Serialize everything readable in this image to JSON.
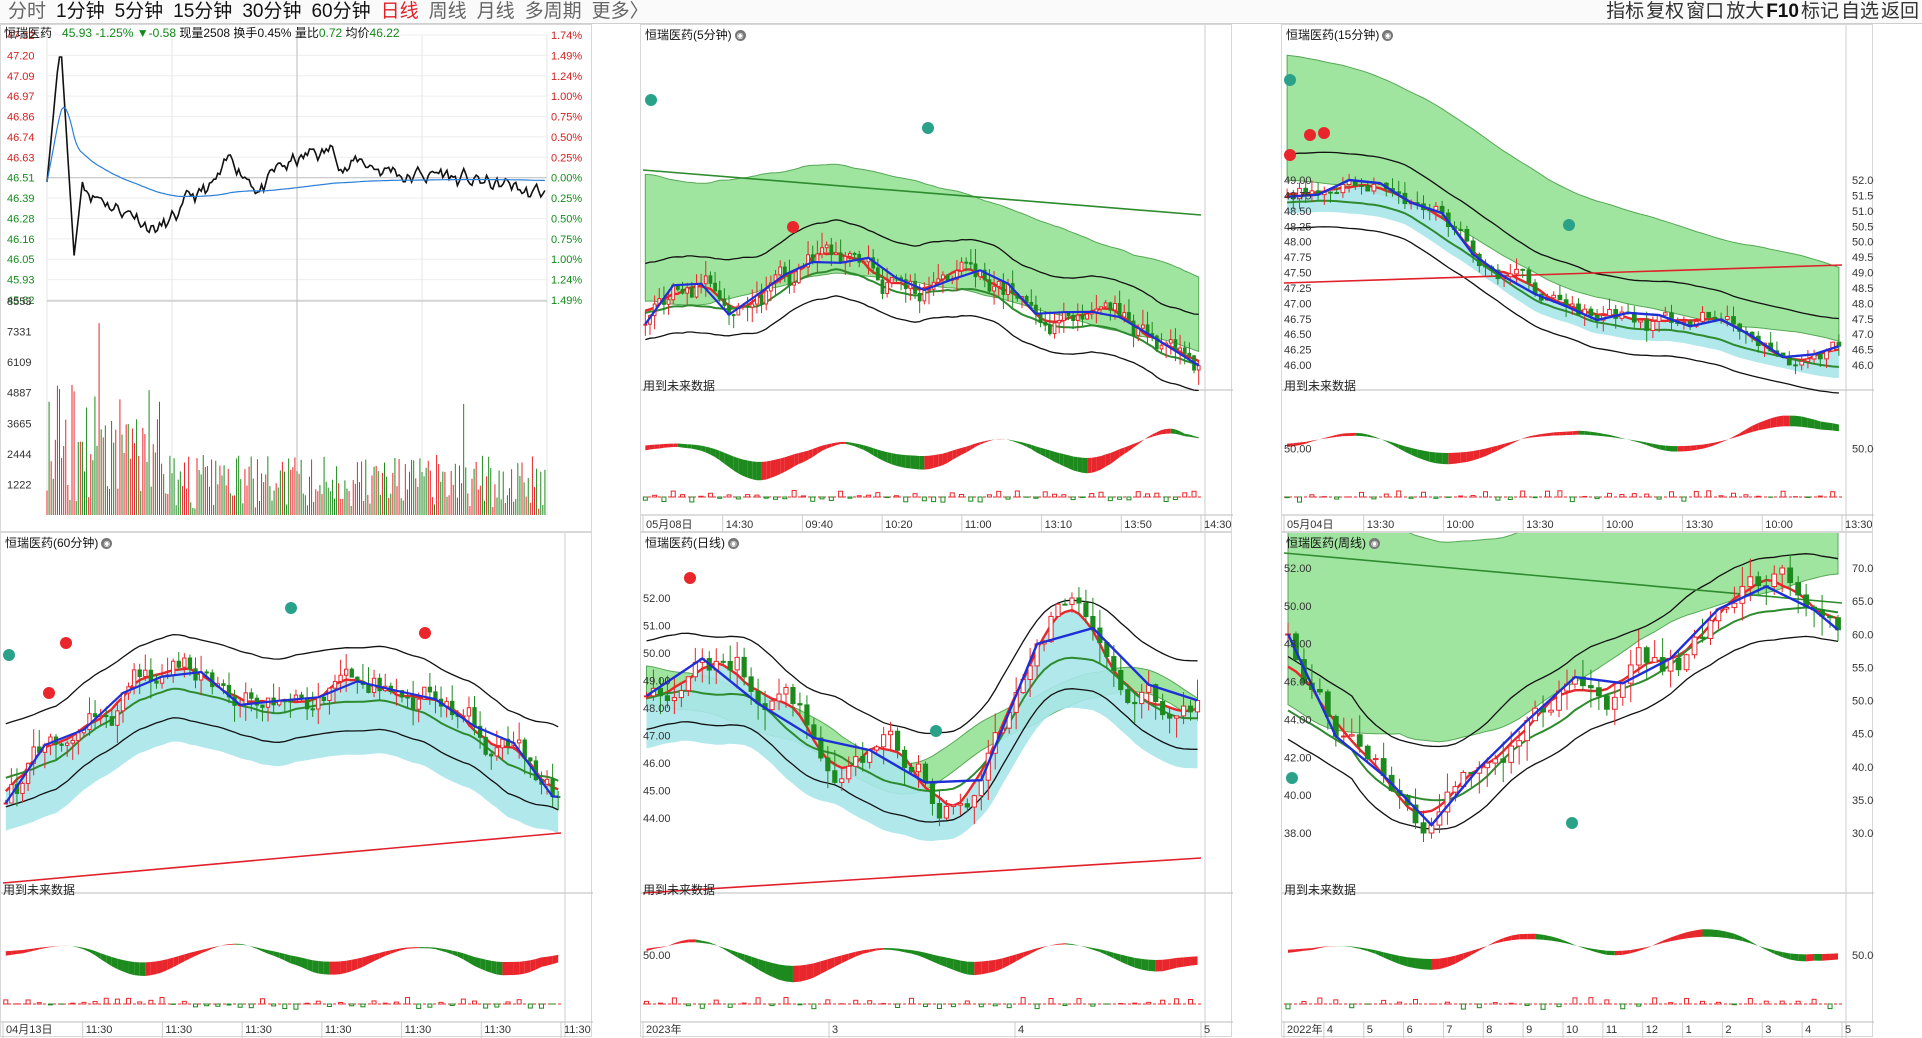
{
  "toolbar": {
    "periods": [
      {
        "label": "分时",
        "style": "gray"
      },
      {
        "label": "1分钟",
        "style": "normal"
      },
      {
        "label": "5分钟",
        "style": "normal"
      },
      {
        "label": "15分钟",
        "style": "normal"
      },
      {
        "label": "30分钟",
        "style": "normal"
      },
      {
        "label": "60分钟",
        "style": "normal"
      },
      {
        "label": "日线",
        "style": "red"
      },
      {
        "label": "周线",
        "style": "gray"
      },
      {
        "label": "月线",
        "style": "gray"
      },
      {
        "label": "多周期",
        "style": "gray"
      },
      {
        "label": "更多〉",
        "style": "gray"
      }
    ],
    "right_tools": [
      {
        "label": "指标",
        "bold": false
      },
      {
        "label": "复权",
        "bold": false
      },
      {
        "label": "窗口",
        "bold": false
      },
      {
        "label": "放大",
        "bold": false
      },
      {
        "label": "F10",
        "bold": true
      },
      {
        "label": "标记",
        "bold": false
      },
      {
        "label": "自选",
        "bold": false
      },
      {
        "label": "返回",
        "bold": false
      }
    ]
  },
  "intraday": {
    "title": "恒瑞医药",
    "price": "45.93",
    "change_pct": "-1.25%",
    "change": "▼-0.58",
    "volume_label": "现量",
    "volume": "2508",
    "turnover_label": "换手",
    "turnover": "0.45%",
    "ratio_label": "量比",
    "ratio": "0.72",
    "avg_label": "均价",
    "avg": "46.22",
    "left_prices": [
      "47.32",
      "47.20",
      "47.09",
      "46.97",
      "46.86",
      "46.74",
      "46.63",
      "46.51",
      "46.39",
      "46.28",
      "46.16",
      "46.05",
      "45.93",
      "45.82"
    ],
    "right_pcts": [
      "1.74%",
      "1.49%",
      "1.24%",
      "1.00%",
      "0.75%",
      "0.50%",
      "0.25%",
      "0.00%",
      "0.25%",
      "0.50%",
      "0.75%",
      "1.00%",
      "1.24%",
      "1.49%"
    ],
    "vol_labels": [
      "8553",
      "7331",
      "6109",
      "4887",
      "3665",
      "2444",
      "1222"
    ]
  },
  "panels": [
    {
      "key": "p5",
      "title": "恒瑞医药(5分钟)",
      "future": "用到未来数据",
      "right_axis": [],
      "sub_axis": [],
      "x_labels": [
        "05月08日",
        "14:30",
        "09:40",
        "10:20",
        "11:00",
        "13:10",
        "13:50",
        "14:30"
      ]
    },
    {
      "key": "p15",
      "title": "恒瑞医药(15分钟)",
      "future": "用到未来数据",
      "left_axis": [
        "49.00",
        "48.75",
        "48.50",
        "48.25",
        "48.00",
        "47.75",
        "47.50",
        "47.25",
        "47.00",
        "46.75",
        "46.50",
        "46.25",
        "46.00"
      ],
      "right_axis": [
        "52.00",
        "51.50",
        "51.00",
        "50.50",
        "50.00",
        "49.50",
        "49.00",
        "48.50",
        "48.00",
        "47.50",
        "47.00",
        "46.50",
        "46.00"
      ],
      "sub_left": "50.00",
      "sub_right": "50.00",
      "x_labels": [
        "05月04日",
        "13:30",
        "10:00",
        "13:30",
        "10:00",
        "13:30",
        "10:00",
        "13:30"
      ]
    },
    {
      "key": "p60",
      "title": "恒瑞医药(60分钟)",
      "future": "用到未来数据",
      "x_labels": [
        "04月13日",
        "11:30",
        "11:30",
        "11:30",
        "11:30",
        "11:30",
        "11:30",
        "11:30"
      ]
    },
    {
      "key": "pd",
      "title": "恒瑞医药(日线)",
      "future": "用到未来数据",
      "left_axis": [
        "52.00",
        "51.00",
        "50.00",
        "49.00",
        "48.00",
        "47.00",
        "46.00",
        "45.00",
        "44.00"
      ],
      "sub_left": "50.00",
      "x_labels": [
        "2023年",
        "3",
        "4",
        "5"
      ]
    },
    {
      "key": "pw",
      "title": "恒瑞医药(周线)",
      "future": "用到未来数据",
      "left_axis": [
        "52.00",
        "50.00",
        "48.00",
        "46.00",
        "44.00",
        "42.00",
        "40.00",
        "38.00"
      ],
      "right_axis": [
        "70.00",
        "65.00",
        "60.00",
        "55.00",
        "50.00",
        "45.00",
        "40.00",
        "35.00",
        "30.00"
      ],
      "sub_right": "50.00",
      "x_labels": [
        "2022年",
        "4",
        "5",
        "6",
        "7",
        "8",
        "9",
        "10",
        "11",
        "12",
        "1",
        "2",
        "3",
        "4",
        "5"
      ]
    }
  ],
  "colors": {
    "up": "#e8262b",
    "down": "#1d8a1d",
    "blue": "#1f2fd8",
    "cyan": "#a9e6ea",
    "green_band": "#8fe08f",
    "black": "#111111"
  }
}
